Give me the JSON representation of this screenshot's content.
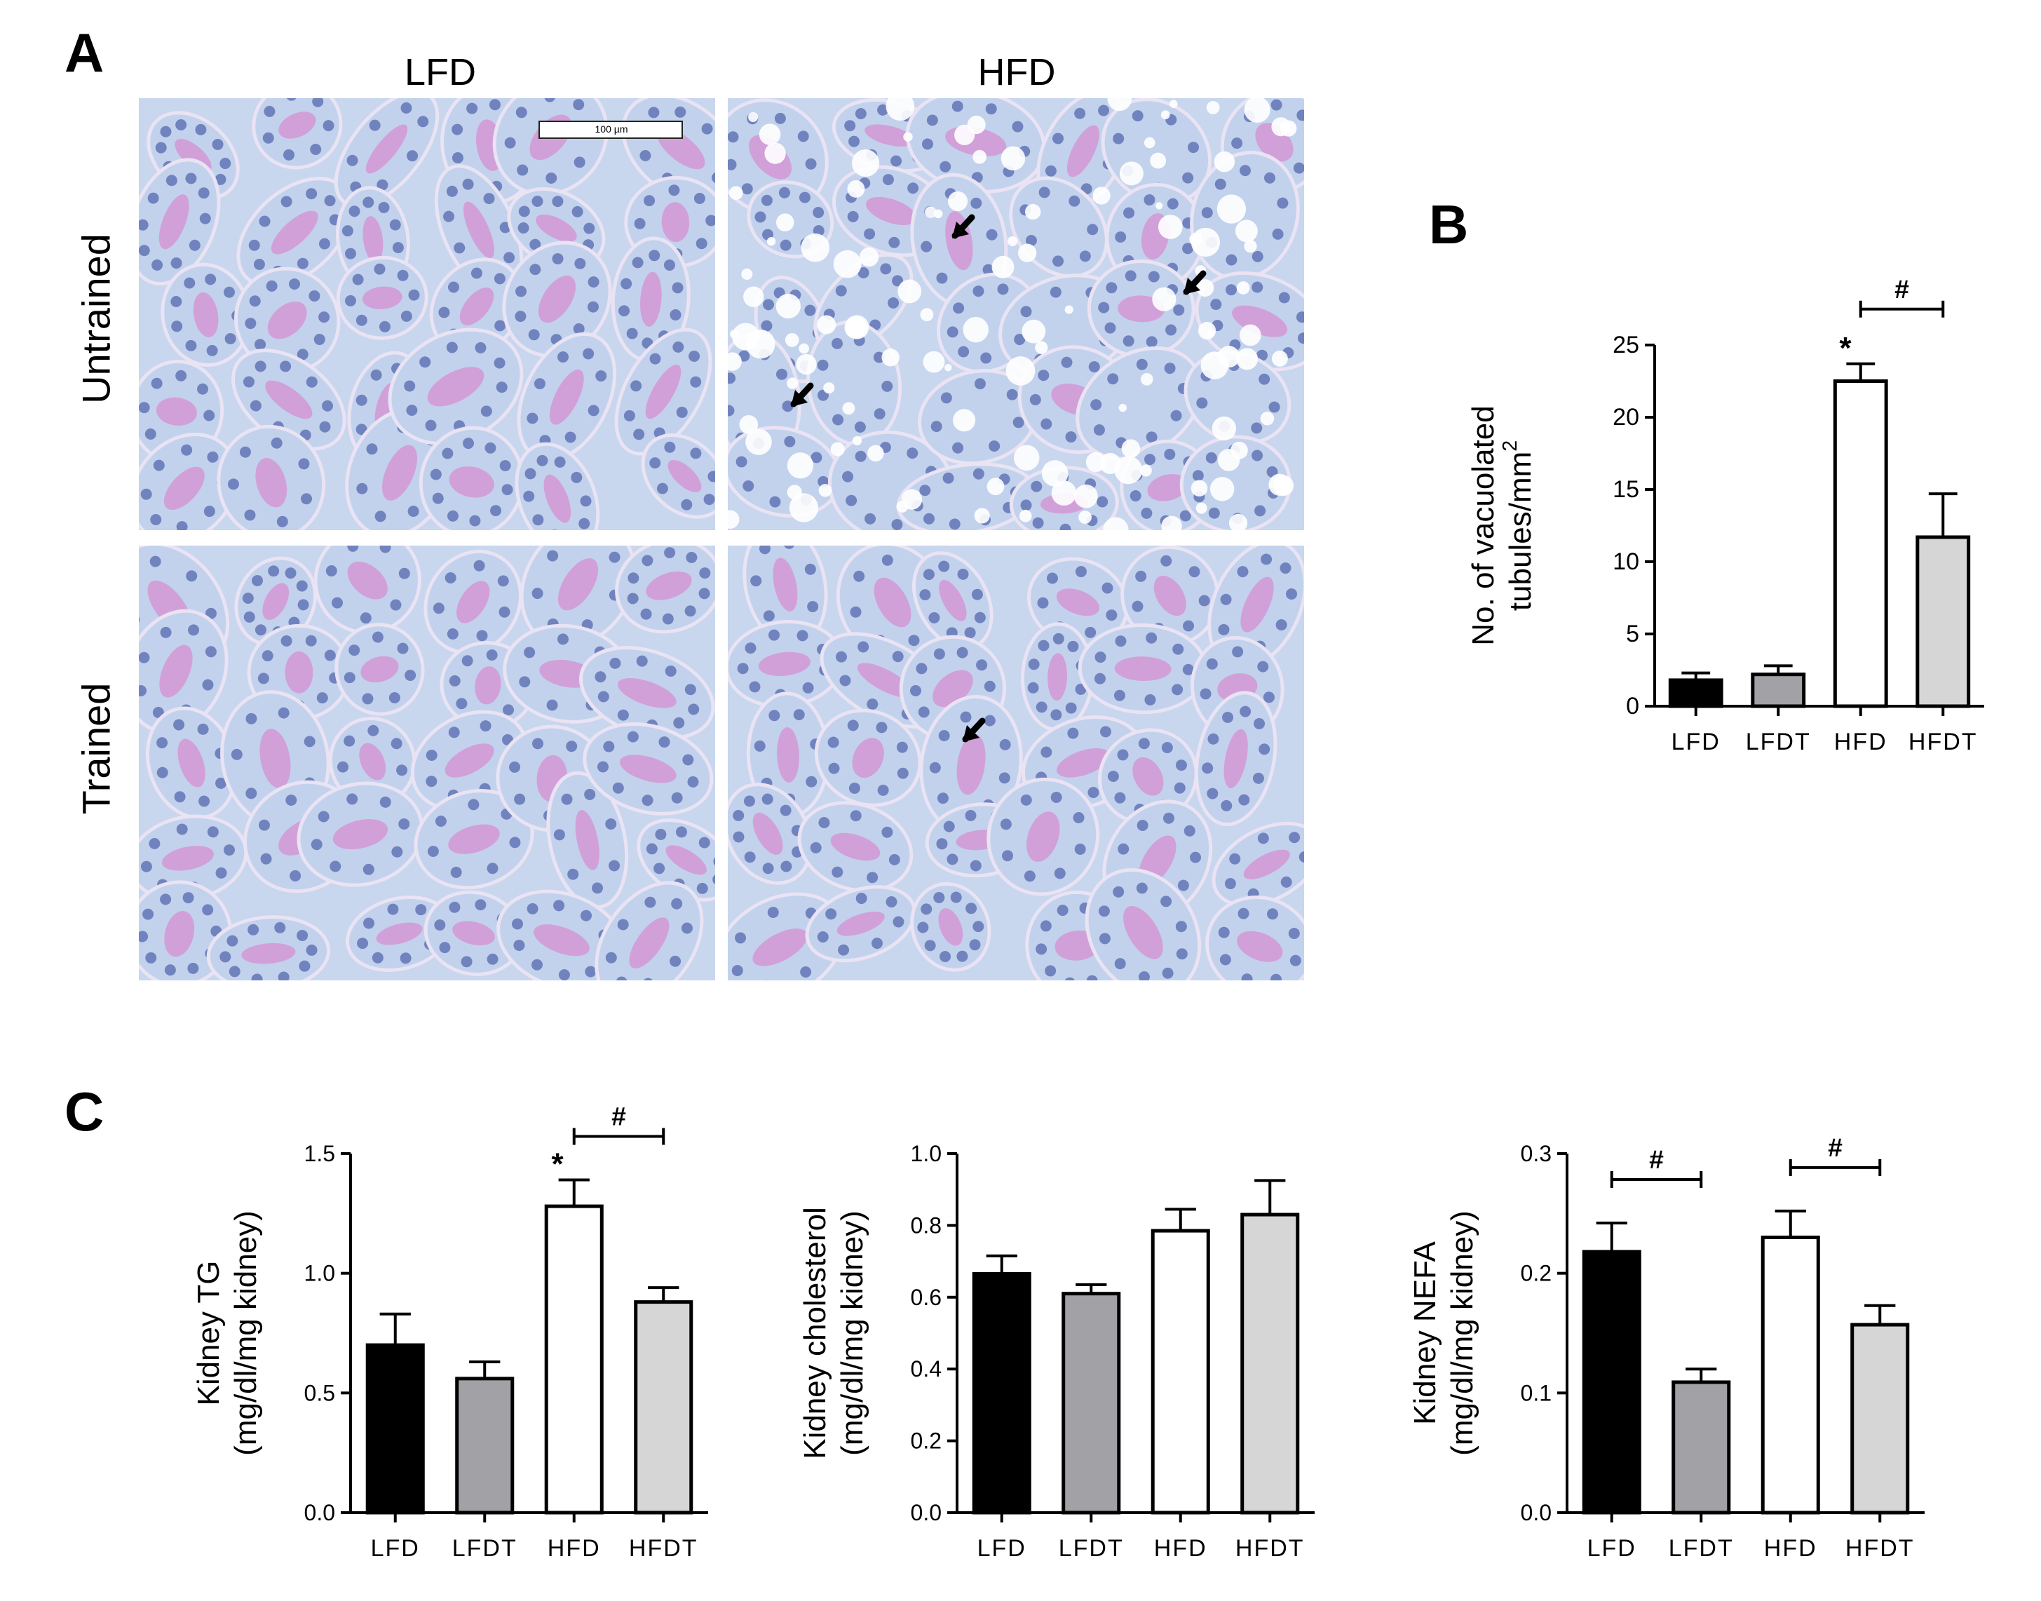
{
  "panels": {
    "a_letter": "A",
    "b_letter": "B",
    "c_letter": "C"
  },
  "micrographs": {
    "column_labels": [
      "LFD",
      "HFD"
    ],
    "row_labels": [
      "Untrained",
      "Trained"
    ],
    "scale_bar": "100 µm",
    "colors": {
      "background": "#c8d6ee",
      "stain": "#d78fd2",
      "nuclei": "#5d6fb3",
      "membrane": "#e9e3f4"
    }
  },
  "chart_data": [
    {
      "id": "b",
      "type": "bar",
      "categories": [
        "LFD",
        "LFDT",
        "HFD",
        "HFDT"
      ],
      "values": [
        1.8,
        2.2,
        22.5,
        11.7
      ],
      "errors": [
        0.5,
        0.6,
        1.2,
        3.0
      ],
      "colors": [
        "#000000",
        "#a2a2a6",
        "#ffffff",
        "#d6d6d6"
      ],
      "ylabel_line1": "No. of vacuolated",
      "ylabel_line2": "tubules/mm",
      "ylabel_sup": "2",
      "ylim": [
        0,
        25
      ],
      "yticks": [
        0,
        5,
        10,
        15,
        20,
        25
      ],
      "ytick_labels": [
        "0",
        "5",
        "10",
        "15",
        "20",
        "25"
      ],
      "annotations": {
        "star": "*",
        "star_on": "HFD",
        "hash": "#",
        "hash_from": "HFD",
        "hash_to": "HFDT"
      }
    },
    {
      "id": "c1",
      "type": "bar",
      "categories": [
        "LFD",
        "LFDT",
        "HFD",
        "HFDT"
      ],
      "values": [
        0.7,
        0.56,
        1.28,
        0.88
      ],
      "errors": [
        0.13,
        0.07,
        0.11,
        0.06
      ],
      "colors": [
        "#000000",
        "#a2a2a6",
        "#ffffff",
        "#d6d6d6"
      ],
      "ylabel_line1": "Kidney TG",
      "ylabel_line2": "(mg/dl/mg kidney)",
      "ylim": [
        0,
        1.5
      ],
      "yticks": [
        0,
        0.5,
        1.0,
        1.5
      ],
      "ytick_labels": [
        "0.0",
        "0.5",
        "1.0",
        "1.5"
      ],
      "annotations": {
        "star": "*",
        "star_on": "HFD",
        "hash": "#",
        "hash_from": "HFD",
        "hash_to": "HFDT"
      }
    },
    {
      "id": "c2",
      "type": "bar",
      "categories": [
        "LFD",
        "LFDT",
        "HFD",
        "HFDT"
      ],
      "values": [
        0.665,
        0.61,
        0.785,
        0.83
      ],
      "errors": [
        0.05,
        0.025,
        0.06,
        0.095
      ],
      "colors": [
        "#000000",
        "#a2a2a6",
        "#ffffff",
        "#d6d6d6"
      ],
      "ylabel_line1": "Kidney cholesterol",
      "ylabel_line2": "(mg/dl/mg kidney)",
      "ylim": [
        0,
        1.0
      ],
      "yticks": [
        0,
        0.2,
        0.4,
        0.6,
        0.8,
        1.0
      ],
      "ytick_labels": [
        "0.0",
        "0.2",
        "0.4",
        "0.6",
        "0.8",
        "1.0"
      ],
      "annotations": null
    },
    {
      "id": "c3",
      "type": "bar",
      "categories": [
        "LFD",
        "LFDT",
        "HFD",
        "HFDT"
      ],
      "values": [
        0.218,
        0.109,
        0.23,
        0.157
      ],
      "errors": [
        0.024,
        0.011,
        0.022,
        0.016
      ],
      "colors": [
        "#000000",
        "#a2a2a6",
        "#ffffff",
        "#d6d6d6"
      ],
      "ylabel_line1": "Kidney NEFA",
      "ylabel_line2": "(mg/dl/mg kidney)",
      "ylim": [
        0,
        0.3
      ],
      "yticks": [
        0,
        0.1,
        0.2,
        0.3
      ],
      "ytick_labels": [
        "0.0",
        "0.1",
        "0.2",
        "0.3"
      ],
      "annotations": {
        "hashes": [
          {
            "hash": "#",
            "from": "LFD",
            "to": "LFDT"
          },
          {
            "hash": "#",
            "from": "HFD",
            "to": "HFDT"
          }
        ]
      }
    }
  ]
}
